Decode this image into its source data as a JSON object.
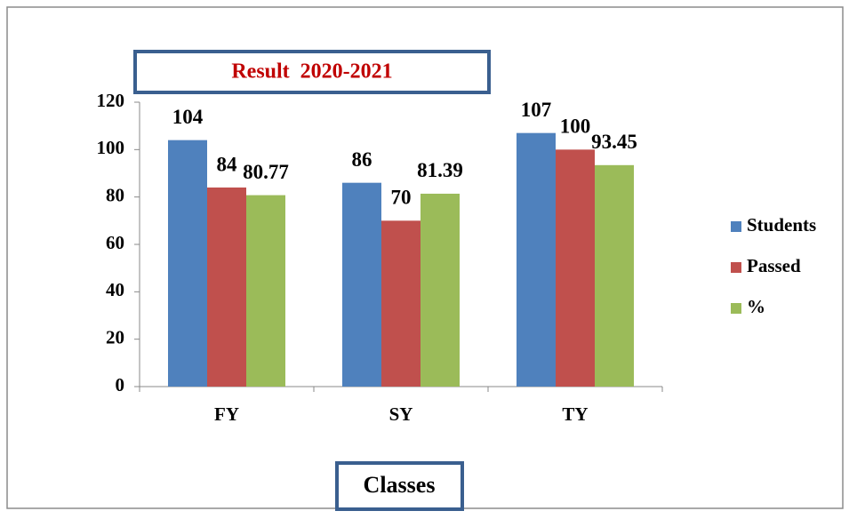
{
  "chart_data": {
    "type": "bar",
    "title": "Result  2020-2021",
    "x_label": "Classes",
    "categories": [
      "FY",
      "SY",
      "TY"
    ],
    "series": [
      {
        "name": "Students",
        "color": "#4f81bd",
        "values": [
          104,
          86,
          107
        ]
      },
      {
        "name": "Passed",
        "color": "#c0504d",
        "values": [
          84,
          70,
          100
        ]
      },
      {
        "name": "%",
        "color": "#9bbb59",
        "values": [
          80.77,
          81.39,
          93.45
        ]
      }
    ],
    "ylim": [
      0,
      120
    ],
    "yticks": [
      0,
      20,
      40,
      60,
      80,
      100,
      120
    ],
    "grid": false,
    "legend": "right"
  }
}
